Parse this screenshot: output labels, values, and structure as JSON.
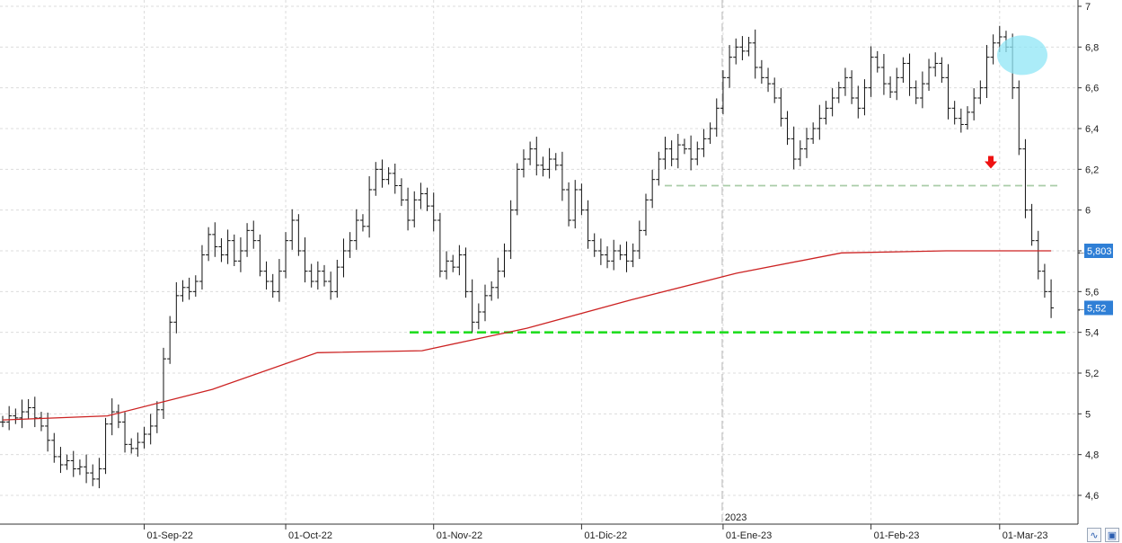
{
  "chart_data": {
    "type": "ohlc",
    "ylim": [
      4.5,
      7.05
    ],
    "grid": true,
    "y_ticks": [
      {
        "value": 4.6,
        "label": "4,6"
      },
      {
        "value": 4.8,
        "label": "4,8"
      },
      {
        "value": 5.0,
        "label": "5"
      },
      {
        "value": 5.2,
        "label": "5,2"
      },
      {
        "value": 5.4,
        "label": "5,4"
      },
      {
        "value": 5.6,
        "label": "5,6"
      },
      {
        "value": 5.8,
        "label": "5,8"
      },
      {
        "value": 6.0,
        "label": "6"
      },
      {
        "value": 6.2,
        "label": "6,2"
      },
      {
        "value": 6.4,
        "label": "6,4"
      },
      {
        "value": 6.6,
        "label": "6,6"
      },
      {
        "value": 6.8,
        "label": "6,8"
      },
      {
        "value": 7.0,
        "label": "7"
      }
    ],
    "x_ticks": [
      {
        "index": 22,
        "label": "01-Sep-22"
      },
      {
        "index": 44,
        "label": "01-Oct-22"
      },
      {
        "index": 67,
        "label": "01-Nov-22"
      },
      {
        "index": 90,
        "label": "01-Dic-22"
      },
      {
        "index": 112,
        "label": "01-Ene-23"
      },
      {
        "index": 135,
        "label": "01-Feb-23"
      },
      {
        "index": 155,
        "label": "01-Mar-23"
      }
    ],
    "year_marker": {
      "index": 112,
      "label": "2023"
    },
    "close": [
      4.96,
      4.99,
      4.98,
      5.01,
      5.03,
      4.98,
      4.94,
      4.87,
      4.79,
      4.75,
      4.77,
      4.73,
      4.74,
      4.71,
      4.68,
      4.73,
      4.95,
      5.01,
      4.96,
      4.85,
      4.83,
      4.86,
      4.9,
      4.94,
      5.02,
      5.27,
      5.45,
      5.58,
      5.62,
      5.6,
      5.65,
      5.78,
      5.88,
      5.82,
      5.78,
      5.85,
      5.75,
      5.8,
      5.9,
      5.85,
      5.7,
      5.65,
      5.6,
      5.7,
      5.85,
      5.95,
      5.8,
      5.7,
      5.65,
      5.7,
      5.65,
      5.6,
      5.72,
      5.8,
      5.85,
      5.95,
      5.92,
      6.1,
      6.2,
      6.15,
      6.18,
      6.12,
      6.05,
      5.95,
      6.05,
      6.08,
      6.02,
      5.95,
      5.7,
      5.75,
      5.72,
      5.78,
      5.6,
      5.45,
      5.5,
      5.58,
      5.62,
      5.7,
      5.8,
      6.0,
      6.2,
      6.25,
      6.3,
      6.22,
      6.2,
      6.25,
      6.22,
      6.1,
      5.95,
      6.1,
      6.0,
      5.85,
      5.8,
      5.78,
      5.75,
      5.8,
      5.78,
      5.75,
      5.8,
      5.9,
      6.05,
      6.15,
      6.25,
      6.3,
      6.25,
      6.32,
      6.3,
      6.25,
      6.3,
      6.35,
      6.4,
      6.5,
      6.65,
      6.75,
      6.8,
      6.78,
      6.82,
      6.7,
      6.65,
      6.62,
      6.55,
      6.45,
      6.35,
      6.25,
      6.3,
      6.35,
      6.4,
      6.45,
      6.5,
      6.55,
      6.6,
      6.65,
      6.55,
      6.5,
      6.6,
      6.75,
      6.7,
      6.62,
      6.58,
      6.65,
      6.72,
      6.6,
      6.55,
      6.62,
      6.7,
      6.72,
      6.65,
      6.5,
      6.45,
      6.42,
      6.48,
      6.55,
      6.6,
      6.75,
      6.82,
      6.85,
      6.8,
      6.6,
      6.3,
      6.0,
      5.85,
      5.7,
      5.6,
      5.52
    ],
    "ma_values": [
      4.97,
      4.99,
      5.12,
      5.3,
      5.31,
      5.42,
      5.56,
      5.69,
      5.79,
      5.8,
      5.8
    ],
    "ma_label": "5,803",
    "last_label": "5,52",
    "support_level": 5.4,
    "resistance_level": 6.12,
    "colors": {
      "bars": "#111111",
      "ma": "#cc2222",
      "support": "#22dd22",
      "resistance": "#aacca8",
      "marker": "#ee1111",
      "highlight": "#8fe6f5",
      "badge": "#2f7fd6"
    }
  },
  "toolbar": {
    "icons": [
      "zigzag-icon",
      "save-icon"
    ]
  }
}
